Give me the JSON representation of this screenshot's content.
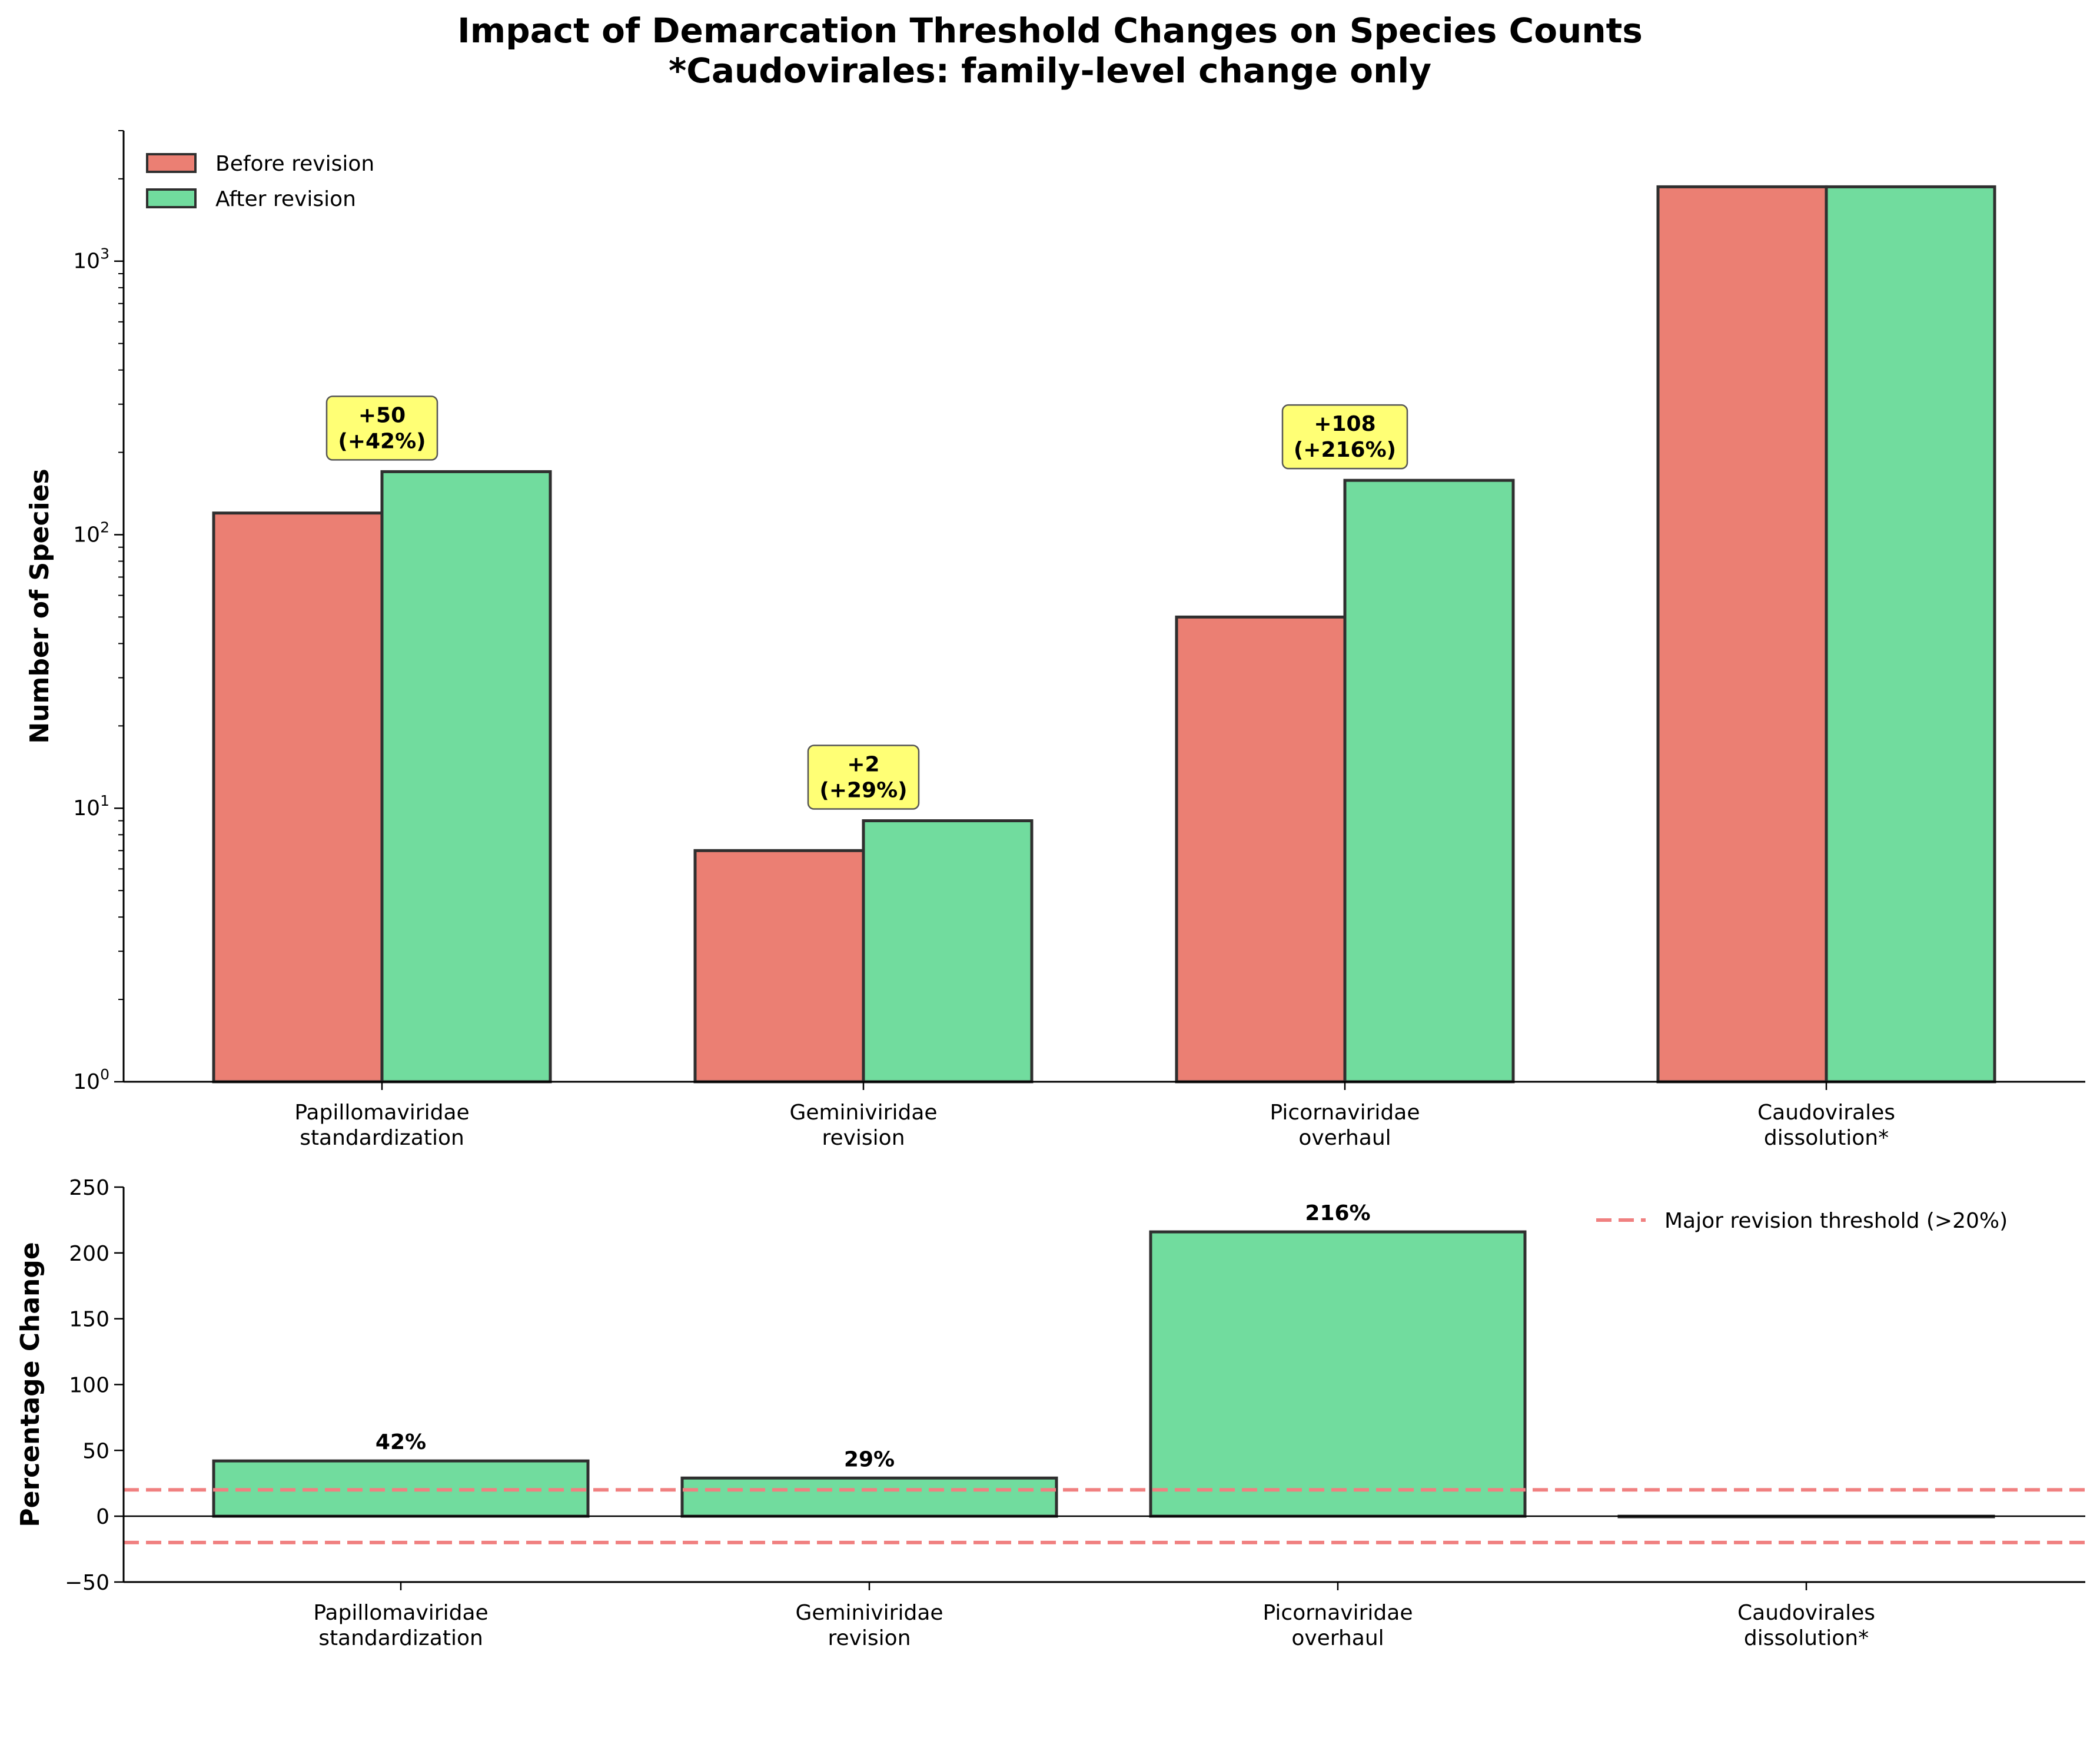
{
  "figure": {
    "title_line1": "Impact of Demarcation Threshold Changes on Species Counts",
    "title_line2": "*Caudovirales: family-level change only"
  },
  "chart_data": [
    {
      "type": "bar",
      "title": "",
      "ylabel": "Number of Species",
      "xlabel": "",
      "yscale": "log",
      "ylim": [
        1,
        3000
      ],
      "y_ticks": [
        {
          "value": 1,
          "base": "10",
          "exp": "0"
        },
        {
          "value": 10,
          "base": "10",
          "exp": "1"
        },
        {
          "value": 100,
          "base": "10",
          "exp": "2"
        },
        {
          "value": 1000,
          "base": "10",
          "exp": "3"
        }
      ],
      "categories": [
        [
          "Papillomaviridae",
          "standardization"
        ],
        [
          "Geminiviridae",
          "revision"
        ],
        [
          "Picornaviridae",
          "overhaul"
        ],
        [
          "Caudovirales",
          "dissolution*"
        ]
      ],
      "series": [
        {
          "name": "Before revision",
          "color": "#e8685a",
          "values": [
            120,
            7,
            50,
            1870
          ]
        },
        {
          "name": "After revision",
          "color": "#58d68d",
          "values": [
            170,
            9,
            158,
            1870
          ]
        }
      ],
      "annotations": [
        {
          "category_index": 0,
          "lines": [
            "+50",
            "(+42%)"
          ]
        },
        {
          "category_index": 1,
          "lines": [
            "+2",
            "(+29%)"
          ]
        },
        {
          "category_index": 2,
          "lines": [
            "+108",
            "(+216%)"
          ]
        }
      ],
      "annotation_color": "#ffff66",
      "legend": "upper-left",
      "grid": false
    },
    {
      "type": "bar",
      "title": "",
      "ylabel": "Percentage Change",
      "xlabel": "",
      "ylim": [
        -50,
        250
      ],
      "y_ticks": [
        -50,
        0,
        50,
        100,
        150,
        200,
        250
      ],
      "categories": [
        [
          "Papillomaviridae",
          "standardization"
        ],
        [
          "Geminiviridae",
          "revision"
        ],
        [
          "Picornaviridae",
          "overhaul"
        ],
        [
          "Caudovirales",
          "dissolution*"
        ]
      ],
      "values": [
        42,
        29,
        216,
        0
      ],
      "value_labels": [
        "42%",
        "29%",
        "216%",
        ""
      ],
      "color": "#58d68d",
      "reference_lines": [
        {
          "y": 20,
          "label": "Major revision threshold (>20%)",
          "color": "#f08080",
          "style": "dashed"
        },
        {
          "y": -20,
          "label": "",
          "color": "#f08080",
          "style": "dashed"
        }
      ],
      "zero_line": true,
      "legend": "upper-right",
      "grid": false
    }
  ]
}
